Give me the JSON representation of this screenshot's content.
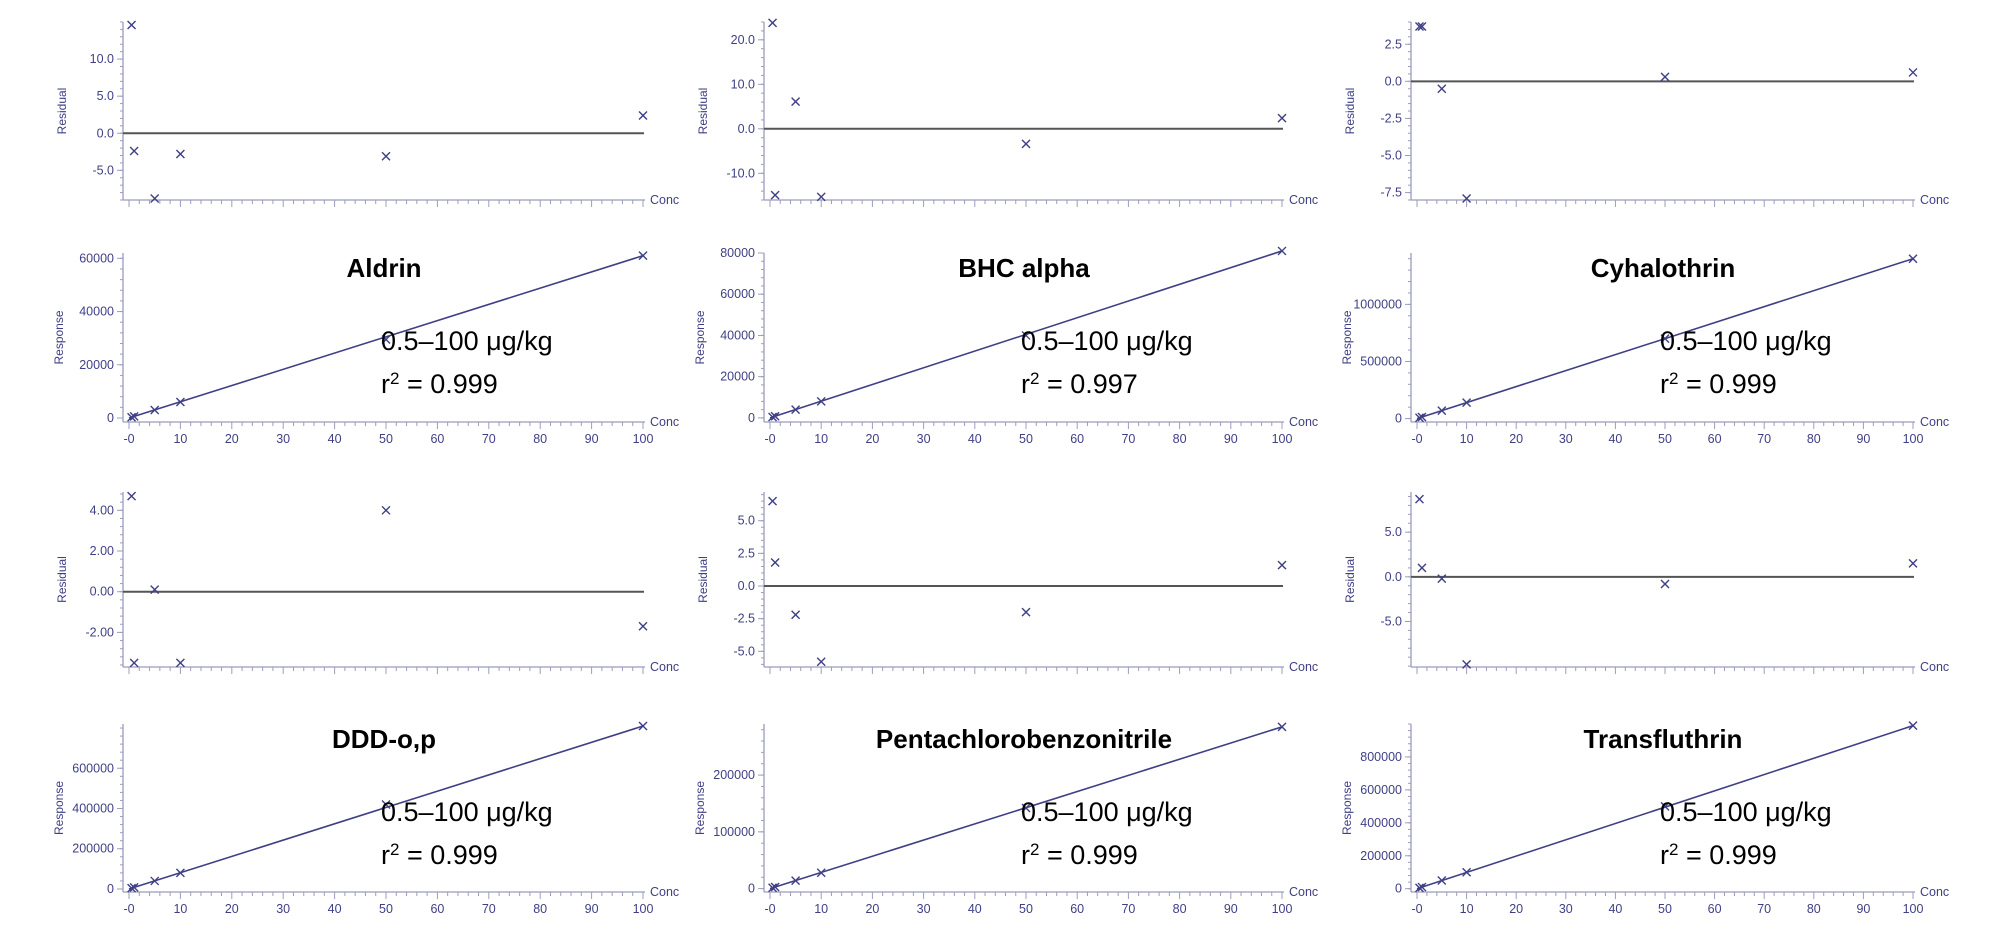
{
  "chart_data": [
    {
      "kind": "residual",
      "type": "scatter",
      "ylabel": "Residual",
      "xlabel": "Conc",
      "ylim": [
        -9,
        15
      ],
      "yticks": [
        "10.0",
        "5.0",
        "0.0",
        "-5.0"
      ],
      "ytickv": [
        10,
        5,
        0,
        -5
      ],
      "x": [
        0.5,
        1,
        5,
        10,
        50,
        100
      ],
      "y": [
        14.6,
        -2.4,
        -8.8,
        -2.8,
        -3.1,
        2.4
      ]
    },
    {
      "kind": "residual",
      "type": "scatter",
      "ylabel": "Residual",
      "xlabel": "Conc",
      "ylim": [
        -16,
        24
      ],
      "yticks": [
        "20.0",
        "10.0",
        "0.0",
        "-10.0"
      ],
      "ytickv": [
        20,
        10,
        0,
        -10
      ],
      "x": [
        0.5,
        1,
        5,
        10,
        50,
        100
      ],
      "y": [
        23.8,
        -14.9,
        6.1,
        -15.3,
        -3.4,
        2.4
      ],
      "extra": []
    },
    {
      "kind": "residual",
      "type": "scatter",
      "ylabel": "Residual",
      "xlabel": "Conc",
      "ylim": [
        -8,
        4
      ],
      "yticks": [
        "2.5",
        "0.0",
        "-2.5",
        "-5.0",
        "-7.5"
      ],
      "ytickv": [
        2.5,
        0,
        -2.5,
        -5,
        -7.5
      ],
      "x": [
        0.5,
        1,
        5,
        10,
        50,
        100
      ],
      "y": [
        3.7,
        3.7,
        -0.5,
        -7.9,
        0.3,
        0.6
      ]
    },
    {
      "kind": "calib",
      "type": "line",
      "ylabel": "Response",
      "xlabel": "Conc",
      "title": "Aldrin",
      "range": "0.5–100 μg/kg",
      "r2": "0.999",
      "ylim": [
        -1500,
        62000
      ],
      "yticks": [
        "60000",
        "40000",
        "20000",
        "0"
      ],
      "ytickv": [
        60000,
        40000,
        20000,
        0
      ],
      "xticks": [
        "0",
        "10",
        "20",
        "30",
        "40",
        "50",
        "60",
        "70",
        "80",
        "90",
        "100"
      ],
      "x": [
        0.5,
        1,
        5,
        10,
        50,
        100
      ],
      "y": [
        300,
        600,
        3000,
        6000,
        29500,
        61000
      ]
    },
    {
      "kind": "calib",
      "type": "line",
      "ylabel": "Response",
      "xlabel": "Conc",
      "title": "BHC alpha",
      "range": "0.5–100 μg/kg",
      "r2": "0.997",
      "ylim": [
        -2000,
        80000
      ],
      "yticks": [
        "80000",
        "60000",
        "40000",
        "20000",
        "0"
      ],
      "ytickv": [
        80000,
        60000,
        40000,
        20000,
        0
      ],
      "xticks": [
        "0",
        "10",
        "20",
        "30",
        "40",
        "50",
        "60",
        "70",
        "80",
        "90",
        "100"
      ],
      "x": [
        0.5,
        1,
        5,
        10,
        50,
        100
      ],
      "y": [
        400,
        800,
        4000,
        8000,
        40000,
        81000
      ]
    },
    {
      "kind": "calib",
      "type": "line",
      "ylabel": "Response",
      "xlabel": "Conc",
      "title": "Cyhalothrin",
      "range": "0.5–100 μg/kg",
      "r2": "0.999",
      "ylim": [
        -30000,
        1450000
      ],
      "yticks": [
        "1000000",
        "500000",
        "0"
      ],
      "ytickv": [
        1000000,
        500000,
        0
      ],
      "xticks": [
        "0",
        "10",
        "20",
        "30",
        "40",
        "50",
        "60",
        "70",
        "80",
        "90",
        "100"
      ],
      "x": [
        0.5,
        1,
        5,
        10,
        50,
        100
      ],
      "y": [
        7000,
        14000,
        70000,
        140000,
        700000,
        1400000
      ]
    },
    {
      "kind": "residual",
      "type": "scatter",
      "ylabel": "Residual",
      "xlabel": "Conc",
      "ylim": [
        -3.7,
        4.9
      ],
      "yticks": [
        "4.00",
        "2.00",
        "0.00",
        "-2.00"
      ],
      "ytickv": [
        4,
        2,
        0,
        -2
      ],
      "x": [
        0.5,
        1,
        5,
        10,
        50,
        100
      ],
      "y": [
        4.7,
        -3.5,
        0.1,
        -3.5,
        4.0,
        -1.7
      ]
    },
    {
      "kind": "residual",
      "type": "scatter",
      "ylabel": "Residual",
      "xlabel": "Conc",
      "ylim": [
        -6.2,
        7.2
      ],
      "yticks": [
        "5.0",
        "2.5",
        "0.0",
        "-2.5",
        "-5.0"
      ],
      "ytickv": [
        5,
        2.5,
        0,
        -2.5,
        -5
      ],
      "x": [
        0.5,
        1,
        5,
        10,
        50,
        100
      ],
      "y": [
        6.5,
        1.8,
        -2.2,
        -5.8,
        -2.0,
        1.6
      ]
    },
    {
      "kind": "residual",
      "type": "scatter",
      "ylabel": "Residual",
      "xlabel": "Conc",
      "ylim": [
        -10.1,
        9.5
      ],
      "yticks": [
        "5.0",
        "0.0",
        "-5.0"
      ],
      "ytickv": [
        5,
        0,
        -5
      ],
      "x": [
        0.5,
        1,
        5,
        10,
        50,
        100
      ],
      "y": [
        8.7,
        1.0,
        -0.2,
        -9.8,
        -0.8,
        1.5
      ]
    },
    {
      "kind": "calib",
      "type": "line",
      "ylabel": "Response",
      "xlabel": "Conc",
      "title": "DDD-o,p",
      "range": "0.5–100 μg/kg",
      "r2": "0.999",
      "ylim": [
        -15000,
        820000
      ],
      "yticks": [
        "600000",
        "400000",
        "200000",
        "0"
      ],
      "ytickv": [
        600000,
        400000,
        200000,
        0
      ],
      "xticks": [
        "0",
        "10",
        "20",
        "30",
        "40",
        "50",
        "60",
        "70",
        "80",
        "90",
        "100"
      ],
      "x": [
        0.5,
        1,
        5,
        10,
        50,
        100
      ],
      "y": [
        4000,
        8000,
        40000,
        80000,
        420000,
        810000
      ]
    },
    {
      "kind": "calib",
      "type": "line",
      "ylabel": "Response",
      "xlabel": "Conc",
      "title": "Pentachlorobenzonitrile",
      "range": "0.5–100 μg/kg",
      "r2": "0.999",
      "ylim": [
        -6000,
        290000
      ],
      "yticks": [
        "200000",
        "100000",
        "0"
      ],
      "ytickv": [
        200000,
        100000,
        0
      ],
      "xticks": [
        "0",
        "10",
        "20",
        "30",
        "40",
        "50",
        "60",
        "70",
        "80",
        "90",
        "100"
      ],
      "x": [
        0.5,
        1,
        5,
        10,
        50,
        100
      ],
      "y": [
        1400,
        2800,
        14000,
        28000,
        142000,
        285000
      ]
    },
    {
      "kind": "calib",
      "type": "line",
      "ylabel": "Response",
      "xlabel": "Conc",
      "title": "Transfluthrin",
      "range": "0.5–100 μg/kg",
      "r2": "0.999",
      "ylim": [
        -20000,
        1000000
      ],
      "yticks": [
        "800000",
        "600000",
        "400000",
        "200000",
        "0"
      ],
      "ytickv": [
        800000,
        600000,
        400000,
        200000,
        0
      ],
      "xticks": [
        "0",
        "10",
        "20",
        "30",
        "40",
        "50",
        "60",
        "70",
        "80",
        "90",
        "100"
      ],
      "x": [
        0.5,
        1,
        5,
        10,
        50,
        100
      ],
      "y": [
        5000,
        10000,
        50000,
        100000,
        500000,
        990000
      ]
    }
  ],
  "colors": {
    "axis": "#9c9cbc",
    "text": "#3f3f86",
    "fit": "#3f3f86",
    "zero_line": "#555555"
  }
}
